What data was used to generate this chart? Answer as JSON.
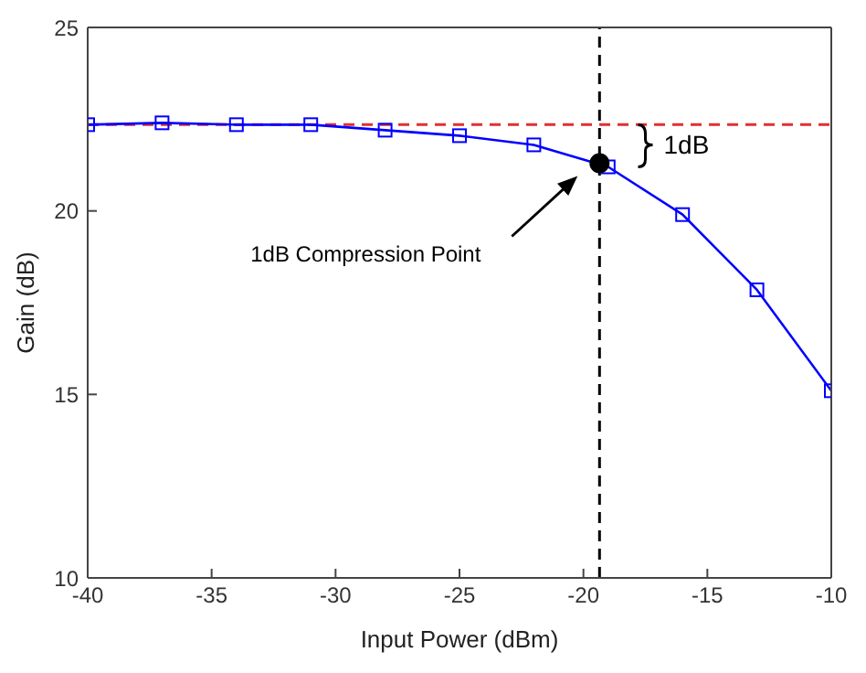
{
  "chart_data": {
    "type": "line",
    "xlabel": "Input Power (dBm)",
    "ylabel": "Gain (dB)",
    "xlim": [
      -40,
      -10
    ],
    "xticks": [
      -40,
      -35,
      -30,
      -25,
      -20,
      -15,
      -10
    ],
    "ylim": [
      10,
      25
    ],
    "yticks": [
      10,
      15,
      20,
      25
    ],
    "x": [
      -40,
      -37,
      -34,
      -31,
      -28,
      -25,
      -22,
      -19,
      -16,
      -13,
      -10
    ],
    "series": [
      {
        "color": "#0000ff",
        "marker": "square",
        "line_style": "solid",
        "values": [
          22.35,
          22.4,
          22.35,
          22.35,
          22.2,
          22.05,
          21.8,
          21.2,
          19.9,
          17.85,
          15.1
        ]
      },
      {
        "type": "scatter",
        "color": "#000000",
        "marker": "circle",
        "x": [
          -19.35
        ],
        "values": [
          21.3
        ]
      }
    ],
    "ref_lines": [
      {
        "axis": "y",
        "value": 22.35,
        "color": "#e03030",
        "line_style": "dashed"
      },
      {
        "axis": "x",
        "value": -19.35,
        "color": "#000000",
        "line_style": "dashed"
      }
    ],
    "annotations": [
      "1dB Compression Point",
      {
        "text": "1dB",
        "x": -17.5,
        "y": 21.8
      }
    ]
  }
}
